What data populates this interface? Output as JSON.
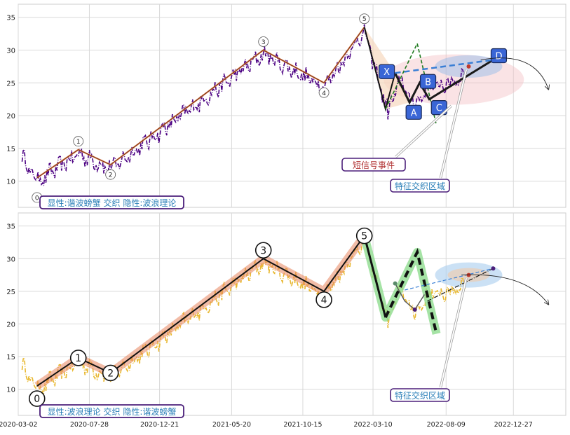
{
  "chart_data": [
    {
      "type": "line",
      "panel": "top",
      "ylim": [
        6,
        37
      ],
      "yticks": [
        10,
        15,
        20,
        25,
        30,
        35
      ],
      "colors": {
        "price": "#4b0082",
        "wave": "#e07a4a",
        "harmonic": "#1a1a1a",
        "pattern_fill": "#f7d9bf",
        "dashed_path": "#1e7a1e",
        "projection": "#3a7fd5",
        "ellipse": "#f2b8bd",
        "label_box": "#3a66d6"
      },
      "caption": "显性:谐波螃蟹 交织 隐性:波浪理论",
      "wave_points": [
        {
          "label": "0",
          "date": "2020-04-10",
          "y": 10.5
        },
        {
          "label": "1",
          "date": "2020-07-05",
          "y": 14.8
        },
        {
          "label": "2",
          "date": "2020-09-10",
          "y": 12.5
        },
        {
          "label": "3",
          "date": "2021-07-25",
          "y": 30.0
        },
        {
          "label": "4",
          "date": "2021-11-28",
          "y": 25.0
        },
        {
          "label": "5",
          "date": "2022-02-20",
          "y": 33.5
        }
      ],
      "harmonic_points": [
        {
          "label": "X",
          "date": "2022-04-25",
          "y": 26.5
        },
        {
          "label": "A",
          "date": "2022-05-25",
          "y": 22.0
        },
        {
          "label": "B",
          "date": "2022-06-15",
          "y": 25.0
        },
        {
          "label": "C",
          "date": "2022-07-05",
          "y": 22.5
        },
        {
          "label": "D",
          "date": "2022-11-15",
          "y": 28.5
        }
      ],
      "annotations": [
        {
          "text": "短信号事件",
          "arrow_to": {
            "date": "2022-08-20",
            "y": 21.5
          }
        },
        {
          "text": "特征交织区域",
          "arrow_to": {
            "date": "2022-09-20",
            "y": 27.0
          }
        }
      ]
    },
    {
      "type": "line",
      "panel": "bottom",
      "ylim": [
        6,
        37
      ],
      "yticks": [
        10,
        15,
        20,
        25,
        30,
        35
      ],
      "colors": {
        "price": "#e8b830",
        "wave": "#e8855f",
        "wave_line": "#111111",
        "green_glow": "#8fdc8f",
        "projection": "#3a7fd5",
        "ellipse": "#a9cdee"
      },
      "caption": "显性:波浪理论 交织 隐性:谐波螃蟹",
      "wave_points": [
        {
          "label": "0",
          "date": "2020-04-10",
          "y": 10.5
        },
        {
          "label": "1",
          "date": "2020-07-05",
          "y": 14.8
        },
        {
          "label": "2",
          "date": "2020-09-10",
          "y": 12.5
        },
        {
          "label": "3",
          "date": "2021-07-25",
          "y": 30.0
        },
        {
          "label": "4",
          "date": "2021-11-28",
          "y": 25.0
        },
        {
          "label": "5",
          "date": "2022-02-20",
          "y": 33.5
        }
      ],
      "annotations": [
        {
          "text": "特征交织区域",
          "arrow_to": {
            "date": "2022-09-20",
            "y": 27.0
          }
        }
      ]
    }
  ],
  "xaxis": {
    "tick_labels": [
      "2020-03-02",
      "2020-07-28",
      "2020-12-21",
      "2021-05-20",
      "2021-10-15",
      "2022-03-10",
      "2022-08-09",
      "2022-12-27"
    ],
    "start": "2020-03-02",
    "end": "2023-04-15"
  }
}
